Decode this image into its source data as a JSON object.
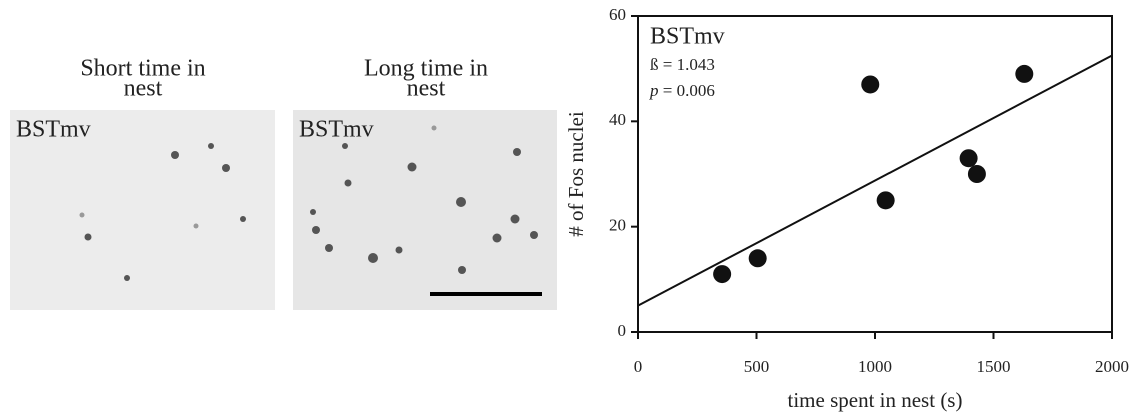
{
  "panels": [
    {
      "title_lines": [
        "Short time in",
        "nest"
      ],
      "label": "BSTmv"
    },
    {
      "title_lines": [
        "Long time in",
        "nest"
      ],
      "label": "BSTmv"
    }
  ],
  "chart_data": {
    "type": "scatter",
    "xlabel": "time spent in nest (s)",
    "ylabel": "# of Fos nuclei",
    "annotation_title": "BSTmv",
    "annotation_beta": "ß = 1.043",
    "annotation_p_symbol": "p",
    "annotation_p_text": " = 0.006",
    "x": [
      355,
      505,
      980,
      1045,
      1395,
      1430,
      1630
    ],
    "values": [
      11,
      14,
      47,
      25,
      33,
      30,
      49
    ],
    "color": "#111111",
    "fit": {
      "x": [
        0,
        2000
      ],
      "y": [
        5,
        52.5
      ]
    },
    "xlim": [
      0,
      2000
    ],
    "xticks": [
      0,
      500,
      1000,
      1500,
      2000
    ],
    "ylim": [
      0,
      60
    ],
    "yticks": [
      0,
      20,
      40,
      60
    ]
  }
}
